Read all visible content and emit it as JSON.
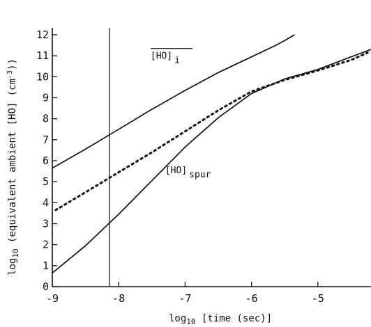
{
  "chart_data": {
    "type": "line",
    "title": "",
    "xlabel": "log10 [time (sec)]",
    "ylabel": "log10 (equivalent ambient [HO] (cm-3))",
    "xlim": [
      -9,
      -4.2
    ],
    "ylim": [
      0,
      12.2
    ],
    "x_ticks": [
      -9,
      -8,
      -7,
      -6,
      -5,
      -4
    ],
    "y_ticks": [
      0,
      1,
      2,
      3,
      4,
      5,
      6,
      7,
      8,
      9,
      10,
      11,
      12
    ],
    "x_tick_labels": [
      "-9",
      "-8",
      "-7",
      "-6",
      "-5",
      "-"
    ],
    "y_tick_labels": [
      "0",
      "1",
      "2",
      "3",
      "4",
      "5",
      "6",
      "7",
      "8",
      "9",
      "10",
      "11",
      "12"
    ],
    "grid": false,
    "legend": null,
    "vertical_line_x": -8.14,
    "series": [
      {
        "name": "[HO]i",
        "style": "solid",
        "x": [
          -9.0,
          -8.5,
          -8.0,
          -7.5,
          -7.0,
          -6.5,
          -6.0,
          -5.6,
          -5.35
        ],
        "y": [
          5.65,
          6.55,
          7.5,
          8.45,
          9.35,
          10.2,
          10.95,
          11.55,
          12.0
        ]
      },
      {
        "name": "",
        "style": "dotted",
        "x": [
          -8.95,
          -8.5,
          -8.0,
          -7.5,
          -7.0,
          -6.5,
          -6.0,
          -5.5,
          -5.0,
          -4.5,
          -4.25
        ],
        "y": [
          3.65,
          4.5,
          5.45,
          6.4,
          7.4,
          8.4,
          9.3,
          9.85,
          10.3,
          10.8,
          11.15
        ]
      },
      {
        "name": "[HO]spur",
        "style": "solid",
        "x": [
          -9.0,
          -8.5,
          -8.0,
          -7.5,
          -7.0,
          -6.5,
          -6.0,
          -5.5,
          -5.0,
          -4.5,
          -4.2
        ],
        "y": [
          0.65,
          1.95,
          3.45,
          5.05,
          6.65,
          8.05,
          9.2,
          9.9,
          10.35,
          10.95,
          11.3
        ]
      }
    ],
    "annotations": [
      {
        "main": "[HO]",
        "sub": "i",
        "x": -7.52,
        "y": 10.85,
        "overline": true
      },
      {
        "main": "[HO]",
        "sub": "spur",
        "x": -7.3,
        "y": 5.4,
        "overline": false
      }
    ]
  }
}
